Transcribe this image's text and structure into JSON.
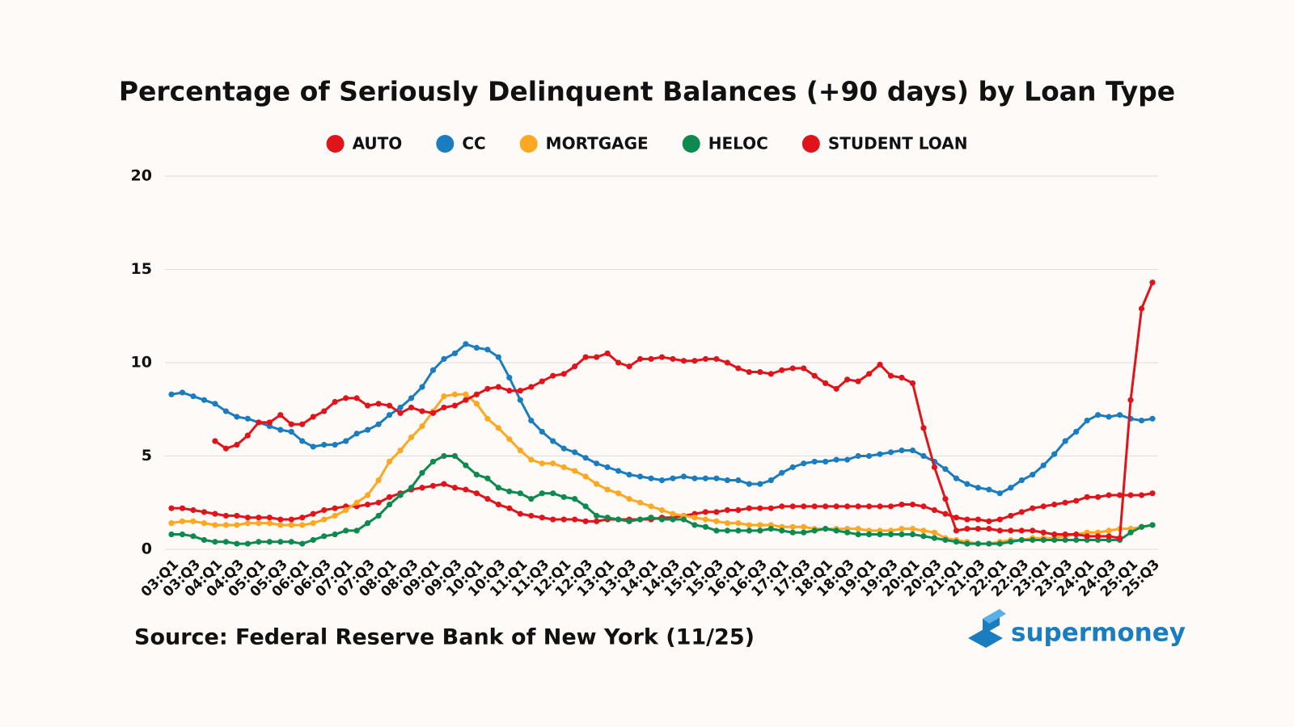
{
  "chart_data": {
    "type": "line",
    "title": "Percentage of Seriously Delinquent Balances (+90 days) by Loan Type",
    "source": "Source: Federal Reserve Bank of New York (11/25)",
    "brand": "supermoney",
    "ylim": [
      0,
      20
    ],
    "yticks": [
      0,
      5,
      10,
      15,
      20
    ],
    "grid": true,
    "legend": "top",
    "categories": [
      "03:Q1",
      null,
      "03:Q3",
      null,
      "04:Q1",
      null,
      "04:Q3",
      null,
      "05:Q1",
      null,
      "05:Q3",
      null,
      "06:Q1",
      null,
      "06:Q3",
      null,
      "07:Q1",
      null,
      "07:Q3",
      null,
      "08:Q1",
      null,
      "08:Q3",
      null,
      "09:Q1",
      null,
      "09:Q3",
      null,
      "10:Q1",
      null,
      "10:Q3",
      null,
      "11:Q1",
      null,
      "11:Q3",
      null,
      "12:Q1",
      null,
      "12:Q3",
      null,
      "13:Q1",
      null,
      "13:Q3",
      null,
      "14:Q1",
      null,
      "14:Q3",
      null,
      "15:Q1",
      null,
      "15:Q3",
      null,
      "16:Q1",
      null,
      "16:Q3",
      null,
      "17:Q1",
      null,
      "17:Q3",
      null,
      "18:Q1",
      null,
      "18:Q3",
      null,
      "19:Q1",
      null,
      "19:Q3",
      null,
      "20:Q1",
      null,
      "20:Q3",
      null,
      "21:Q1",
      null,
      "21:Q3",
      null,
      "22:Q1",
      null,
      "22:Q3",
      null,
      "23:Q1",
      null,
      "23:Q3",
      null,
      "24:Q1",
      null,
      "24:Q3",
      null,
      "25:Q1",
      null,
      "25:Q3"
    ],
    "series": [
      {
        "name": "AUTO",
        "color": "#e0151b",
        "values": [
          2.2,
          2.2,
          2.1,
          2.0,
          1.9,
          1.8,
          1.8,
          1.7,
          1.7,
          1.7,
          1.6,
          1.6,
          1.7,
          1.9,
          2.1,
          2.2,
          2.3,
          2.3,
          2.4,
          2.5,
          2.8,
          3.0,
          3.2,
          3.3,
          3.4,
          3.5,
          3.3,
          3.2,
          3.0,
          2.7,
          2.4,
          2.2,
          1.9,
          1.8,
          1.7,
          1.6,
          1.6,
          1.6,
          1.5,
          1.5,
          1.6,
          1.6,
          1.6,
          1.6,
          1.6,
          1.7,
          1.7,
          1.8,
          1.9,
          2.0,
          2.0,
          2.1,
          2.1,
          2.2,
          2.2,
          2.2,
          2.3,
          2.3,
          2.3,
          2.3,
          2.3,
          2.3,
          2.3,
          2.3,
          2.3,
          2.3,
          2.3,
          2.4,
          2.4,
          2.3,
          2.1,
          1.9,
          1.7,
          1.6,
          1.6,
          1.5,
          1.6,
          1.8,
          2.0,
          2.2,
          2.3,
          2.4,
          2.5,
          2.6,
          2.8,
          2.8,
          2.9,
          2.9,
          2.9,
          2.9,
          3.0
        ]
      },
      {
        "name": "CC",
        "color": "#1a7dc0",
        "values": [
          8.3,
          8.4,
          8.2,
          8.0,
          7.8,
          7.4,
          7.1,
          7.0,
          6.8,
          6.6,
          6.4,
          6.3,
          5.8,
          5.5,
          5.6,
          5.6,
          5.8,
          6.2,
          6.4,
          6.7,
          7.2,
          7.6,
          8.1,
          8.7,
          9.6,
          10.2,
          10.5,
          11.0,
          10.8,
          10.7,
          10.3,
          9.2,
          8.0,
          6.9,
          6.3,
          5.8,
          5.4,
          5.2,
          4.9,
          4.6,
          4.4,
          4.2,
          4.0,
          3.9,
          3.8,
          3.7,
          3.8,
          3.9,
          3.8,
          3.8,
          3.8,
          3.7,
          3.7,
          3.5,
          3.5,
          3.7,
          4.1,
          4.4,
          4.6,
          4.7,
          4.7,
          4.8,
          4.8,
          5.0,
          5.0,
          5.1,
          5.2,
          5.3,
          5.3,
          5.0,
          4.7,
          4.3,
          3.8,
          3.5,
          3.3,
          3.2,
          3.0,
          3.3,
          3.7,
          4.0,
          4.5,
          5.1,
          5.8,
          6.3,
          6.9,
          7.2,
          7.1,
          7.2,
          7.0,
          6.9,
          7.0
        ]
      },
      {
        "name": "MORTGAGE",
        "color": "#fca823",
        "values": [
          1.4,
          1.5,
          1.5,
          1.4,
          1.3,
          1.3,
          1.3,
          1.4,
          1.4,
          1.4,
          1.3,
          1.3,
          1.3,
          1.4,
          1.6,
          1.8,
          2.1,
          2.5,
          2.9,
          3.7,
          4.7,
          5.3,
          6.0,
          6.6,
          7.4,
          8.2,
          8.3,
          8.3,
          7.8,
          7.0,
          6.5,
          5.9,
          5.3,
          4.8,
          4.6,
          4.6,
          4.4,
          4.2,
          3.9,
          3.5,
          3.2,
          3.0,
          2.7,
          2.5,
          2.3,
          2.1,
          1.9,
          1.8,
          1.7,
          1.6,
          1.5,
          1.4,
          1.4,
          1.3,
          1.3,
          1.3,
          1.2,
          1.2,
          1.2,
          1.1,
          1.1,
          1.1,
          1.1,
          1.1,
          1.0,
          1.0,
          1.0,
          1.1,
          1.1,
          1.0,
          0.9,
          0.6,
          0.5,
          0.4,
          0.3,
          0.3,
          0.4,
          0.5,
          0.5,
          0.6,
          0.6,
          0.6,
          0.7,
          0.8,
          0.9,
          0.9,
          1.0,
          1.1,
          1.1,
          1.2,
          1.3
        ]
      },
      {
        "name": "HELOC",
        "color": "#0e8a50",
        "values": [
          0.8,
          0.8,
          0.7,
          0.5,
          0.4,
          0.4,
          0.3,
          0.3,
          0.4,
          0.4,
          0.4,
          0.4,
          0.3,
          0.5,
          0.7,
          0.8,
          1.0,
          1.0,
          1.4,
          1.8,
          2.4,
          2.9,
          3.3,
          4.1,
          4.7,
          5.0,
          5.0,
          4.5,
          4.0,
          3.8,
          3.3,
          3.1,
          3.0,
          2.7,
          3.0,
          3.0,
          2.8,
          2.7,
          2.3,
          1.8,
          1.7,
          1.6,
          1.5,
          1.6,
          1.7,
          1.6,
          1.6,
          1.6,
          1.3,
          1.2,
          1.0,
          1.0,
          1.0,
          1.0,
          1.0,
          1.1,
          1.0,
          0.9,
          0.9,
          1.0,
          1.1,
          1.0,
          0.9,
          0.8,
          0.8,
          0.8,
          0.8,
          0.8,
          0.8,
          0.7,
          0.6,
          0.5,
          0.4,
          0.3,
          0.3,
          0.3,
          0.3,
          0.4,
          0.5,
          0.5,
          0.5,
          0.5,
          0.5,
          0.5,
          0.5,
          0.5,
          0.5,
          0.5,
          0.9,
          1.2,
          1.3
        ]
      },
      {
        "name": "STUDENT LOAN",
        "color": "#e0151b",
        "values": [
          null,
          null,
          null,
          null,
          5.8,
          5.4,
          5.6,
          6.1,
          6.8,
          6.8,
          7.2,
          6.7,
          6.7,
          7.1,
          7.4,
          7.9,
          8.1,
          8.1,
          7.7,
          7.8,
          7.7,
          7.3,
          7.6,
          7.4,
          7.3,
          7.6,
          7.7,
          8.0,
          8.3,
          8.6,
          8.7,
          8.5,
          8.5,
          8.7,
          9.0,
          9.3,
          9.4,
          9.8,
          10.3,
          10.3,
          10.5,
          10.0,
          9.8,
          10.2,
          10.2,
          10.3,
          10.2,
          10.1,
          10.1,
          10.2,
          10.2,
          10.0,
          9.7,
          9.5,
          9.5,
          9.4,
          9.6,
          9.7,
          9.7,
          9.3,
          8.9,
          8.6,
          9.1,
          9.0,
          9.4,
          9.9,
          9.3,
          9.2,
          8.9,
          6.5,
          4.4,
          2.7,
          1.0,
          1.1,
          1.1,
          1.1,
          1.0,
          1.0,
          1.0,
          1.0,
          0.9,
          0.8,
          0.8,
          0.8,
          0.7,
          0.7,
          0.7,
          0.6,
          8.0,
          12.9,
          14.3
        ]
      }
    ]
  }
}
